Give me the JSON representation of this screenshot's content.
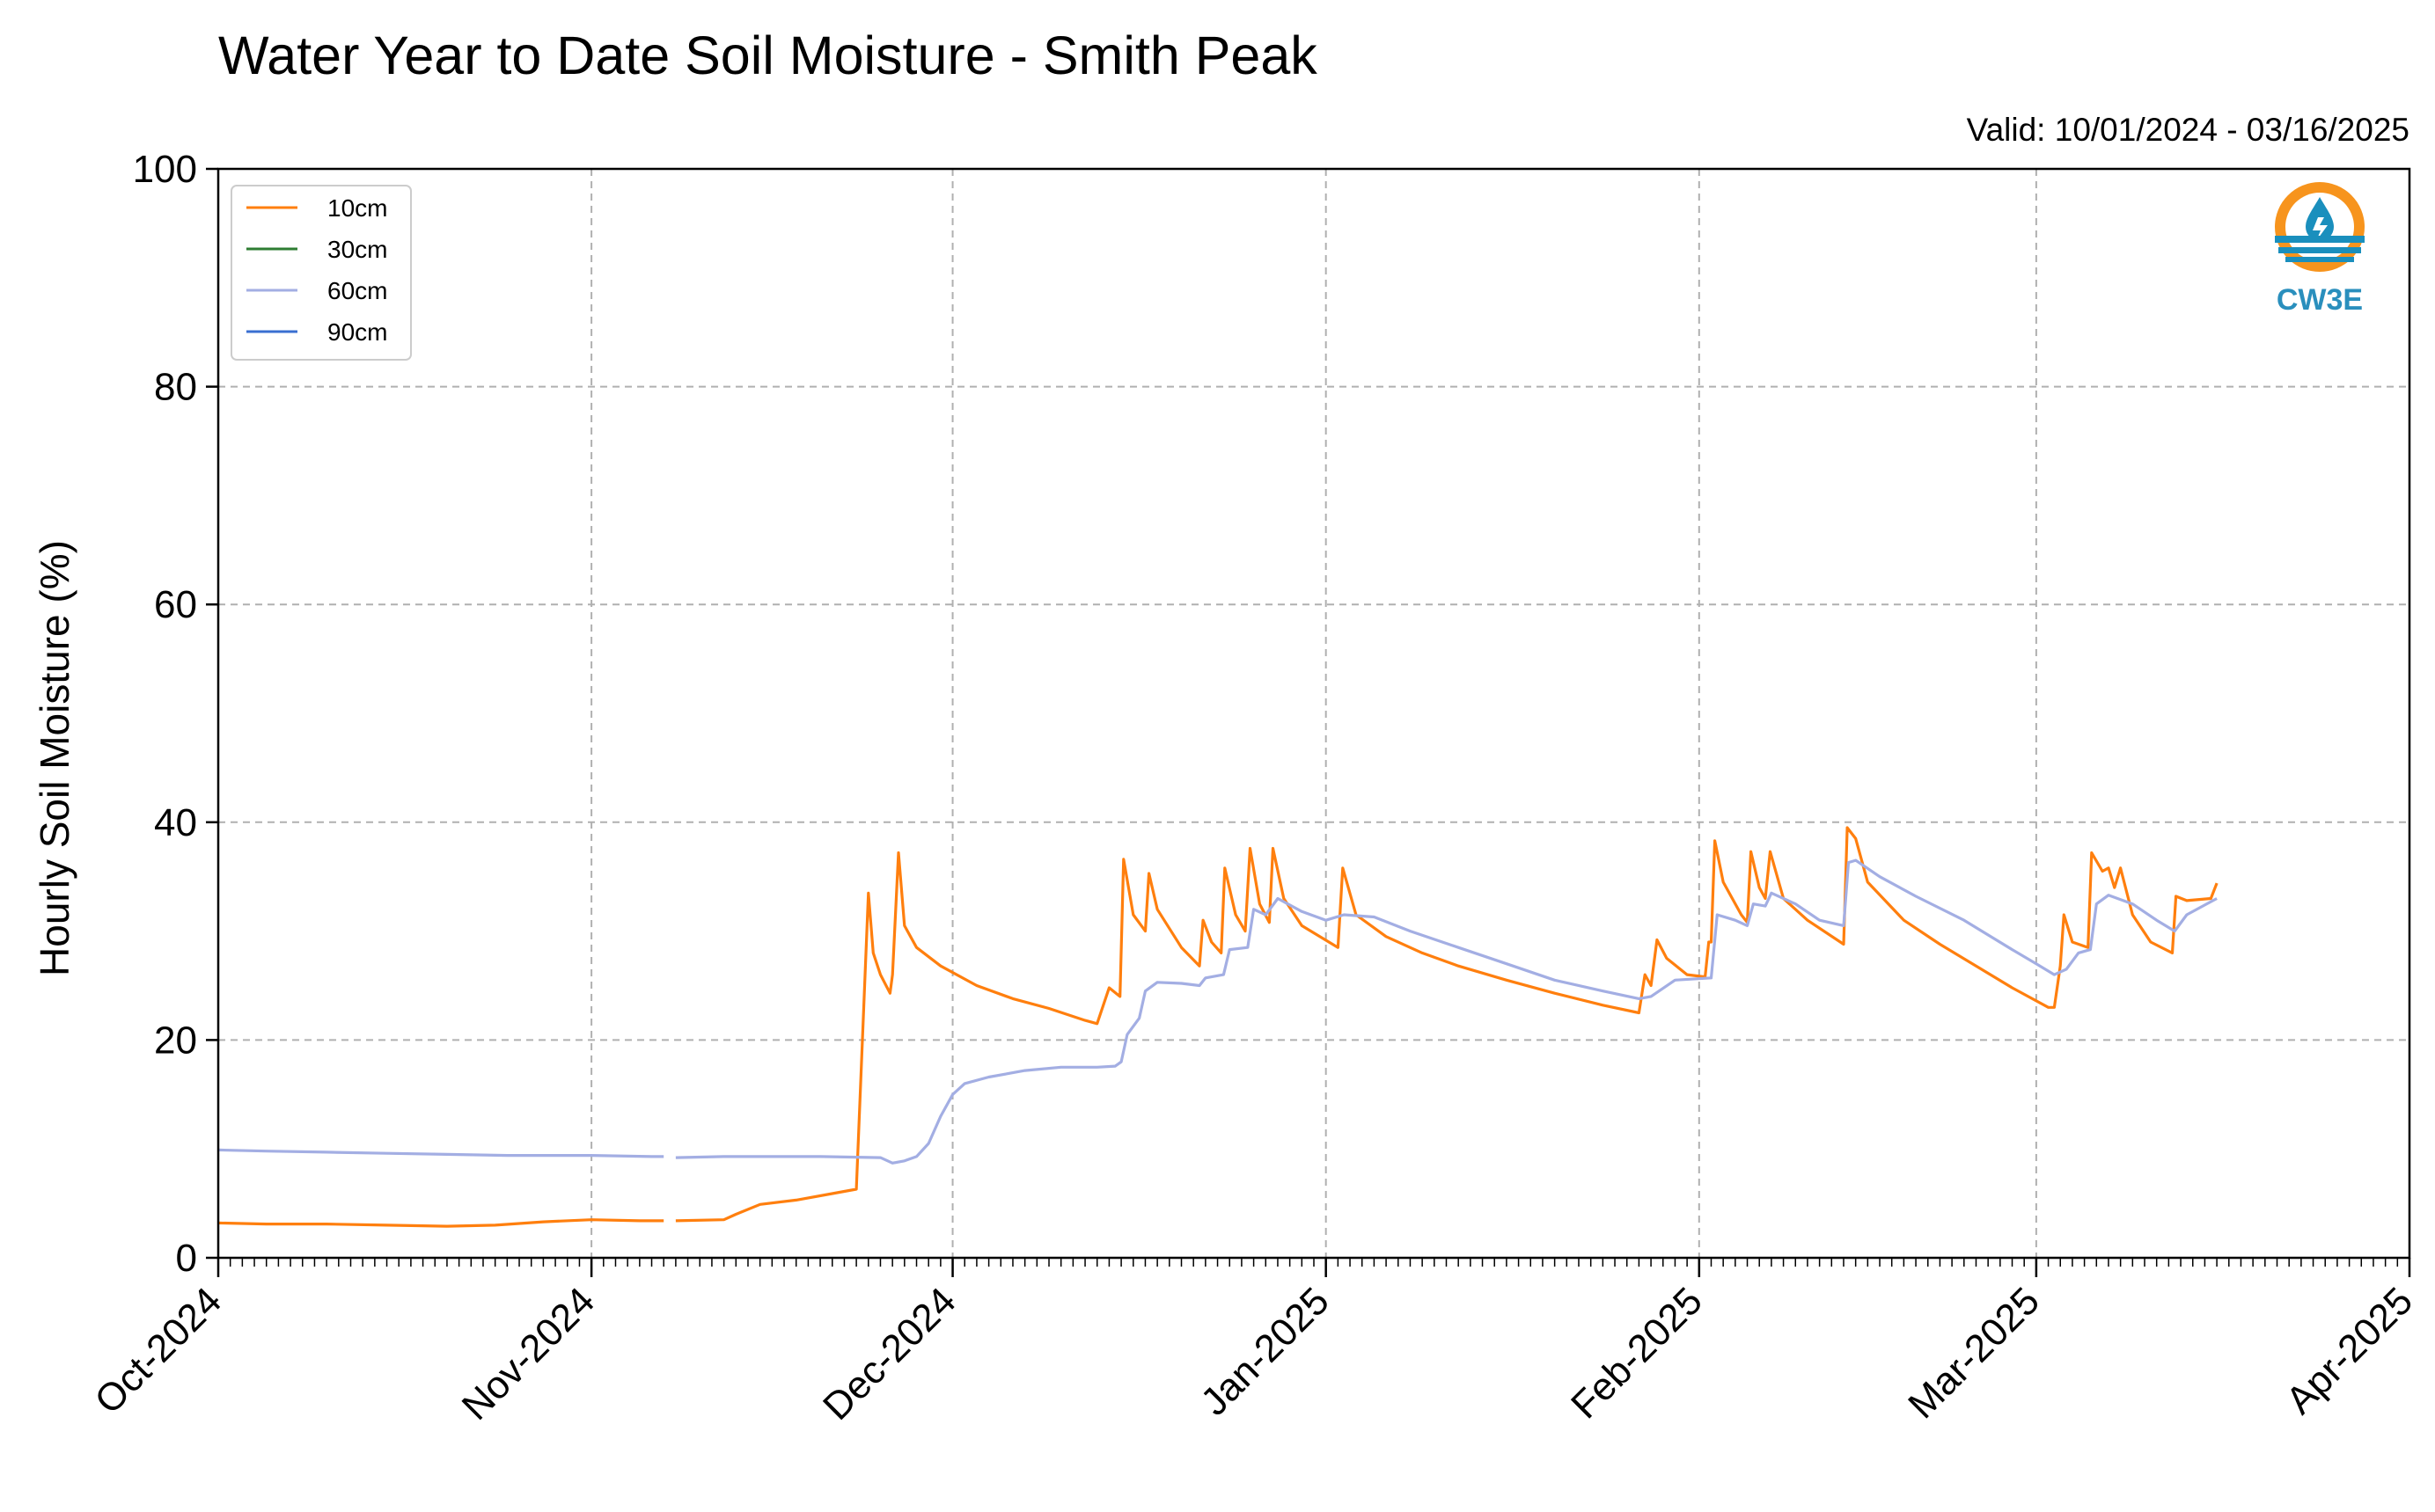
{
  "chart_data": {
    "type": "line",
    "title": "Water Year to Date Soil Moisture - Smith Peak",
    "subtitle": "Valid: 10/01/2024 - 03/16/2025",
    "xlabel": "",
    "ylabel": "Hourly Soil Moisture (%)",
    "ylim": [
      0,
      100
    ],
    "xlim": [
      "2024-10-01",
      "2025-04-01"
    ],
    "yticks": [
      0,
      20,
      40,
      60,
      80,
      100
    ],
    "xticks": [
      {
        "date": "2024-10-01",
        "label": "Oct-2024"
      },
      {
        "date": "2024-11-01",
        "label": "Nov-2024"
      },
      {
        "date": "2024-12-01",
        "label": "Dec-2024"
      },
      {
        "date": "2025-01-01",
        "label": "Jan-2025"
      },
      {
        "date": "2025-02-01",
        "label": "Feb-2025"
      },
      {
        "date": "2025-03-01",
        "label": "Mar-2025"
      },
      {
        "date": "2025-04-01",
        "label": "Apr-2025"
      }
    ],
    "grid": true,
    "legend_position": "top-left",
    "series": [
      {
        "name": "10cm",
        "color": "#ff7f0e",
        "points": [
          [
            "2024-10-01",
            3.2
          ],
          [
            "2024-10-05",
            3.1
          ],
          [
            "2024-10-10",
            3.1
          ],
          [
            "2024-10-15",
            3.0
          ],
          [
            "2024-10-20",
            2.9
          ],
          [
            "2024-10-24",
            3.0
          ],
          [
            "2024-10-28",
            3.3
          ],
          [
            "2024-11-01",
            3.5
          ],
          [
            "2024-11-05",
            3.4
          ],
          [
            "2024-11-07",
            3.4
          ],
          null,
          [
            "2024-11-08",
            3.4
          ],
          [
            "2024-11-12",
            3.5
          ],
          [
            "2024-11-13",
            4.0
          ],
          [
            "2024-11-15",
            4.9
          ],
          [
            "2024-11-18",
            5.3
          ],
          [
            "2024-11-21",
            5.9
          ],
          [
            "2024-11-23",
            6.3
          ],
          [
            "2024-11-24",
            33.5
          ],
          [
            "2024-11-24.4",
            28.0
          ],
          [
            "2024-11-25",
            26.0
          ],
          [
            "2024-11-25.8",
            24.3
          ],
          [
            "2024-11-26",
            26.0
          ],
          [
            "2024-11-26.5",
            37.2
          ],
          [
            "2024-11-27",
            30.5
          ],
          [
            "2024-11-28",
            28.5
          ],
          [
            "2024-11-30",
            26.8
          ],
          [
            "2024-12-03",
            25.0
          ],
          [
            "2024-12-06",
            23.8
          ],
          [
            "2024-12-09",
            22.9
          ],
          [
            "2024-12-12",
            21.8
          ],
          [
            "2024-12-13",
            21.5
          ],
          [
            "2024-12-14",
            24.8
          ],
          [
            "2024-12-14.9",
            24.0
          ],
          [
            "2024-12-15.2",
            36.6
          ],
          [
            "2024-12-16",
            31.5
          ],
          [
            "2024-12-17",
            30.0
          ],
          [
            "2024-12-17.3",
            35.3
          ],
          [
            "2024-12-18",
            32.0
          ],
          [
            "2024-12-20",
            28.5
          ],
          [
            "2024-12-21.5",
            26.8
          ],
          [
            "2024-12-21.8",
            31.0
          ],
          [
            "2024-12-22.5",
            29.0
          ],
          [
            "2024-12-23.3",
            28.0
          ],
          [
            "2024-12-23.6",
            35.8
          ],
          [
            "2024-12-24.5",
            31.5
          ],
          [
            "2024-12-25.3",
            30.0
          ],
          [
            "2024-12-25.7",
            37.6
          ],
          [
            "2024-12-26.5",
            32.5
          ],
          [
            "2024-12-27.3",
            30.8
          ],
          [
            "2024-12-27.6",
            37.6
          ],
          [
            "2024-12-28.5",
            33.0
          ],
          [
            "2024-12-30",
            30.5
          ],
          [
            "2025-01-02",
            28.5
          ],
          [
            "2025-01-02.4",
            35.8
          ],
          [
            "2025-01-03.5",
            31.5
          ],
          [
            "2025-01-06",
            29.5
          ],
          [
            "2025-01-09",
            28.0
          ],
          [
            "2025-01-12",
            26.8
          ],
          [
            "2025-01-16",
            25.5
          ],
          [
            "2025-01-20",
            24.3
          ],
          [
            "2025-01-24",
            23.2
          ],
          [
            "2025-01-27",
            22.5
          ],
          [
            "2025-01-27.5",
            26.0
          ],
          [
            "2025-01-28",
            25.0
          ],
          [
            "2025-01-28.5",
            29.2
          ],
          [
            "2025-01-29.3",
            27.5
          ],
          [
            "2025-01-31",
            26.0
          ],
          [
            "2025-02-01.5",
            25.8
          ],
          [
            "2025-02-01.8",
            29.0
          ],
          [
            "2025-02-02",
            29.0
          ],
          [
            "2025-02-02.3",
            38.3
          ],
          [
            "2025-02-03",
            34.5
          ],
          [
            "2025-02-04.5",
            31.5
          ],
          [
            "2025-02-05",
            30.8
          ],
          [
            "2025-02-05.3",
            37.3
          ],
          [
            "2025-02-06",
            34.0
          ],
          [
            "2025-02-06.5",
            33.0
          ],
          [
            "2025-02-06.9",
            37.3
          ],
          [
            "2025-02-08",
            33.0
          ],
          [
            "2025-02-10",
            31.0
          ],
          [
            "2025-02-13",
            28.8
          ],
          [
            "2025-02-13.3",
            39.5
          ],
          [
            "2025-02-14",
            38.5
          ],
          [
            "2025-02-15",
            34.5
          ],
          [
            "2025-02-18",
            31.0
          ],
          [
            "2025-02-21",
            28.8
          ],
          [
            "2025-02-24",
            26.8
          ],
          [
            "2025-02-27",
            24.8
          ],
          [
            "2025-03-02",
            23.0
          ],
          [
            "2025-03-02.5",
            23.0
          ],
          [
            "2025-03-03",
            26.8
          ],
          [
            "2025-03-03.3",
            31.5
          ],
          [
            "2025-03-04",
            29.0
          ],
          [
            "2025-03-05.3",
            28.5
          ],
          [
            "2025-03-05.6",
            37.2
          ],
          [
            "2025-03-06.5",
            35.5
          ],
          [
            "2025-03-07",
            35.8
          ],
          [
            "2025-03-07.5",
            34.0
          ],
          [
            "2025-03-08",
            35.8
          ],
          [
            "2025-03-09",
            31.5
          ],
          [
            "2025-03-10.5",
            29.0
          ],
          [
            "2025-03-12.3",
            28.0
          ],
          [
            "2025-03-12.6",
            33.2
          ],
          [
            "2025-03-13.5",
            32.8
          ],
          [
            "2025-03-15.5",
            33.0
          ],
          [
            "2025-03-16",
            34.4
          ]
        ]
      },
      {
        "name": "30cm",
        "color": "#2e7d32",
        "points": []
      },
      {
        "name": "60cm",
        "color": "#a3aee3",
        "points": [
          [
            "2024-10-01",
            9.9
          ],
          [
            "2024-10-05",
            9.8
          ],
          [
            "2024-10-10",
            9.7
          ],
          [
            "2024-10-15",
            9.6
          ],
          [
            "2024-10-20",
            9.5
          ],
          [
            "2024-10-25",
            9.4
          ],
          [
            "2024-11-01",
            9.4
          ],
          [
            "2024-11-06",
            9.3
          ],
          [
            "2024-11-07",
            9.3
          ],
          null,
          [
            "2024-11-08",
            9.2
          ],
          [
            "2024-11-12",
            9.3
          ],
          [
            "2024-11-15",
            9.3
          ],
          [
            "2024-11-20",
            9.3
          ],
          [
            "2024-11-25",
            9.2
          ],
          [
            "2024-11-26",
            8.7
          ],
          [
            "2024-11-27",
            8.9
          ],
          [
            "2024-11-28",
            9.3
          ],
          [
            "2024-11-29",
            10.5
          ],
          [
            "2024-11-30",
            13.0
          ],
          [
            "2024-12-01",
            15.0
          ],
          [
            "2024-12-02",
            16.0
          ],
          [
            "2024-12-04",
            16.6
          ],
          [
            "2024-12-07",
            17.2
          ],
          [
            "2024-12-10",
            17.5
          ],
          [
            "2024-12-13",
            17.5
          ],
          [
            "2024-12-14.5",
            17.6
          ],
          [
            "2024-12-15",
            18.0
          ],
          [
            "2024-12-15.5",
            20.5
          ],
          [
            "2024-12-16.5",
            22.0
          ],
          [
            "2024-12-17",
            24.5
          ],
          [
            "2024-12-18",
            25.3
          ],
          [
            "2024-12-20",
            25.2
          ],
          [
            "2024-12-21.5",
            25.0
          ],
          [
            "2024-12-22",
            25.7
          ],
          [
            "2024-12-23.5",
            26.0
          ],
          [
            "2024-12-24",
            28.3
          ],
          [
            "2024-12-25.5",
            28.5
          ],
          [
            "2024-12-26",
            32.0
          ],
          [
            "2024-12-27",
            31.5
          ],
          [
            "2024-12-28",
            33.0
          ],
          [
            "2024-12-30",
            31.8
          ],
          [
            "2025-01-01",
            31.0
          ],
          [
            "2025-01-02.5",
            31.5
          ],
          [
            "2025-01-05",
            31.3
          ],
          [
            "2025-01-08",
            30.0
          ],
          [
            "2025-01-12",
            28.5
          ],
          [
            "2025-01-16",
            27.0
          ],
          [
            "2025-01-20",
            25.5
          ],
          [
            "2025-01-24",
            24.5
          ],
          [
            "2025-01-27",
            23.8
          ],
          [
            "2025-01-28",
            24.0
          ],
          [
            "2025-01-30",
            25.5
          ],
          [
            "2025-02-02",
            25.7
          ],
          [
            "2025-02-02.5",
            31.5
          ],
          [
            "2025-02-04",
            31.0
          ],
          [
            "2025-02-05",
            30.5
          ],
          [
            "2025-02-05.5",
            32.5
          ],
          [
            "2025-02-06.5",
            32.3
          ],
          [
            "2025-02-07",
            33.5
          ],
          [
            "2025-02-09",
            32.5
          ],
          [
            "2025-02-11",
            31.0
          ],
          [
            "2025-02-13",
            30.5
          ],
          [
            "2025-02-13.4",
            36.3
          ],
          [
            "2025-02-14",
            36.5
          ],
          [
            "2025-02-16",
            35.0
          ],
          [
            "2025-02-19",
            33.2
          ],
          [
            "2025-02-23",
            31.0
          ],
          [
            "2025-02-27",
            28.3
          ],
          [
            "2025-03-01",
            27.0
          ],
          [
            "2025-03-02.5",
            26.0
          ],
          [
            "2025-03-03.5",
            26.5
          ],
          [
            "2025-03-04.5",
            28.0
          ],
          [
            "2025-03-05.5",
            28.3
          ],
          [
            "2025-03-06",
            32.5
          ],
          [
            "2025-03-07",
            33.3
          ],
          [
            "2025-03-09",
            32.5
          ],
          [
            "2025-03-11",
            31.0
          ],
          [
            "2025-03-12.5",
            30.0
          ],
          [
            "2025-03-13.5",
            31.5
          ],
          [
            "2025-03-15",
            32.4
          ],
          [
            "2025-03-16",
            33.0
          ]
        ]
      },
      {
        "name": "90cm",
        "color": "#3a6fd1",
        "points": []
      }
    ]
  },
  "logo": {
    "text": "CW3E",
    "icon": "cw3e-droplet-logo-icon",
    "ring_color": "#f7941d",
    "wave_color": "#1a8fbd",
    "text_color": "#2a8fbd"
  }
}
